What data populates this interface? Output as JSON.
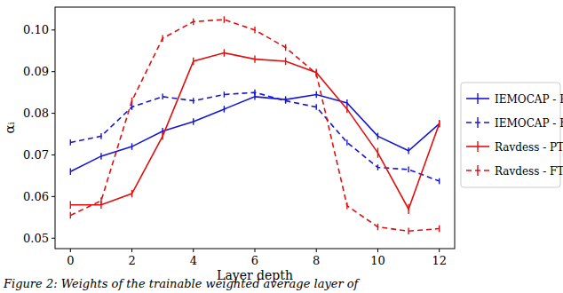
{
  "chart_data": {
    "type": "line",
    "x_label": "Layer depth",
    "y_label": "αᵢ",
    "caption": "Figure 2: Weights of the trainable weighted average layer of",
    "x": [
      0,
      1,
      2,
      3,
      4,
      5,
      6,
      7,
      8,
      9,
      10,
      11,
      12
    ],
    "xlim": [
      -0.5,
      12.5
    ],
    "xticks": [
      0,
      2,
      4,
      6,
      8,
      10,
      12
    ],
    "ylim": [
      0.0475,
      0.1055
    ],
    "yticks": [
      0.05,
      0.06,
      0.07,
      0.08,
      0.09,
      {
        "value": 0.1,
        "label": "0.10"
      }
    ],
    "grid": false,
    "legend": "right",
    "series": [
      {
        "name": "IEMOCAP - PT",
        "color": "#1515d6",
        "line_style": "solid",
        "values": [
          0.066,
          0.0697,
          0.072,
          0.0757,
          0.078,
          0.081,
          0.084,
          0.0833,
          0.0845,
          0.0825,
          0.0745,
          0.071,
          0.0775
        ],
        "errors": [
          0.0008,
          0.0008,
          0.0008,
          0.0008,
          0.0008,
          0.0008,
          0.0008,
          0.0008,
          0.0008,
          0.0008,
          0.0008,
          0.0008,
          0.0008
        ]
      },
      {
        "name": "IEMOCAP - FT",
        "color": "#1515d6",
        "line_style": "dashed",
        "values": [
          0.073,
          0.0745,
          0.0815,
          0.084,
          0.083,
          0.0845,
          0.085,
          0.083,
          0.0815,
          0.073,
          0.067,
          0.0665,
          0.0637
        ],
        "errors": [
          0.0007,
          0.0007,
          0.0007,
          0.0007,
          0.0007,
          0.0007,
          0.0007,
          0.0007,
          0.0007,
          0.0007,
          0.0007,
          0.0007,
          0.0007
        ]
      },
      {
        "name": "Ravdess - PT",
        "color": "#e01010",
        "line_style": "solid",
        "values": [
          0.058,
          0.058,
          0.0607,
          0.0745,
          0.0925,
          0.0945,
          0.093,
          0.0925,
          0.0898,
          0.081,
          0.0705,
          0.057,
          0.0775
        ],
        "errors": [
          0.0009,
          0.0009,
          0.0009,
          0.0009,
          0.0009,
          0.0009,
          0.0009,
          0.0009,
          0.0009,
          0.0009,
          0.0012,
          0.0012,
          0.0009
        ]
      },
      {
        "name": "Ravdess - FT",
        "color": "#e01010",
        "line_style": "dashed",
        "values": [
          0.0555,
          0.059,
          0.083,
          0.098,
          0.102,
          0.1025,
          0.1,
          0.0958,
          0.0895,
          0.0578,
          0.0527,
          0.0517,
          0.0523
        ],
        "errors": [
          0.0008,
          0.0008,
          0.0008,
          0.0008,
          0.0008,
          0.0008,
          0.0008,
          0.0008,
          0.0008,
          0.0008,
          0.0008,
          0.0008,
          0.0008
        ]
      }
    ]
  }
}
